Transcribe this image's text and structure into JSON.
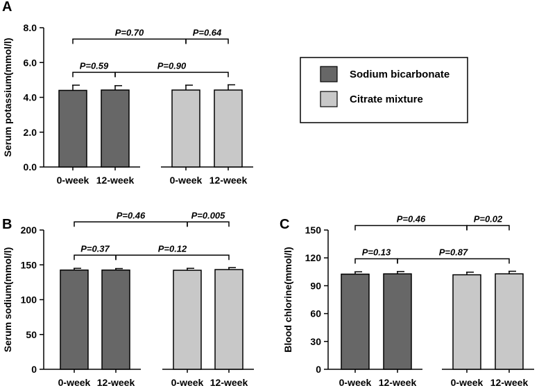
{
  "chart_data": [
    {
      "panel": "A",
      "type": "bar",
      "ylabel": "Serum potassium(mmol/l)",
      "ylim": [
        0,
        8
      ],
      "yticks": [
        "0.0",
        "2.0",
        "4.0",
        "6.0",
        "8.0"
      ],
      "categories": [
        "0-week",
        "12-week",
        "0-week",
        "12-week"
      ],
      "groups": [
        "Sodium bicarbonate",
        "Sodium bicarbonate",
        "Citrate mixture",
        "Citrate mixture"
      ],
      "values": [
        4.4,
        4.42,
        4.42,
        4.42
      ],
      "errors": [
        0.3,
        0.25,
        0.28,
        0.3
      ],
      "comparisons": [
        {
          "from": 0,
          "to": 1,
          "label": "P=0.59"
        },
        {
          "from": 1,
          "to": 3,
          "label": "P=0.90"
        },
        {
          "from": 0,
          "to": 2,
          "label": "P=0.70"
        },
        {
          "from": 2,
          "to": 3,
          "label": "P=0.64"
        }
      ]
    },
    {
      "panel": "B",
      "type": "bar",
      "ylabel": "Serum sodium(mmol/l)",
      "ylim": [
        0,
        200
      ],
      "yticks": [
        "0",
        "50",
        "100",
        "150",
        "200"
      ],
      "categories": [
        "0-week",
        "12-week",
        "0-week",
        "12-week"
      ],
      "groups": [
        "Sodium bicarbonate",
        "Sodium bicarbonate",
        "Citrate mixture",
        "Citrate mixture"
      ],
      "values": [
        142.5,
        142.5,
        142.2,
        143.2
      ],
      "errors": [
        2.5,
        2.2,
        2.8,
        2.8
      ],
      "comparisons": [
        {
          "from": 0,
          "to": 1,
          "label": "P=0.37"
        },
        {
          "from": 1,
          "to": 3,
          "label": "P=0.12"
        },
        {
          "from": 0,
          "to": 2,
          "label": "P=0.46"
        },
        {
          "from": 2,
          "to": 3,
          "label": "P=0.005"
        }
      ]
    },
    {
      "panel": "C",
      "type": "bar",
      "ylabel": "Blood chlorine(mmol/l)",
      "ylim": [
        0,
        150
      ],
      "yticks": [
        "0",
        "30",
        "60",
        "90",
        "120",
        "150"
      ],
      "categories": [
        "0-week",
        "12-week",
        "0-week",
        "12-week"
      ],
      "groups": [
        "Sodium bicarbonate",
        "Sodium bicarbonate",
        "Citrate mixture",
        "Citrate mixture"
      ],
      "values": [
        102.5,
        102.8,
        101.8,
        102.8
      ],
      "errors": [
        2.5,
        2.5,
        2.8,
        2.8
      ],
      "comparisons": [
        {
          "from": 0,
          "to": 1,
          "label": "P=0.13"
        },
        {
          "from": 1,
          "to": 3,
          "label": "P=0.87"
        },
        {
          "from": 0,
          "to": 2,
          "label": "P=0.46"
        },
        {
          "from": 2,
          "to": 3,
          "label": "P=0.02"
        }
      ]
    }
  ],
  "legend": {
    "items": [
      {
        "label": "Sodium bicarbonate",
        "color": "#676767"
      },
      {
        "label": "Citrate mixture",
        "color": "#c8c8c8"
      }
    ]
  }
}
